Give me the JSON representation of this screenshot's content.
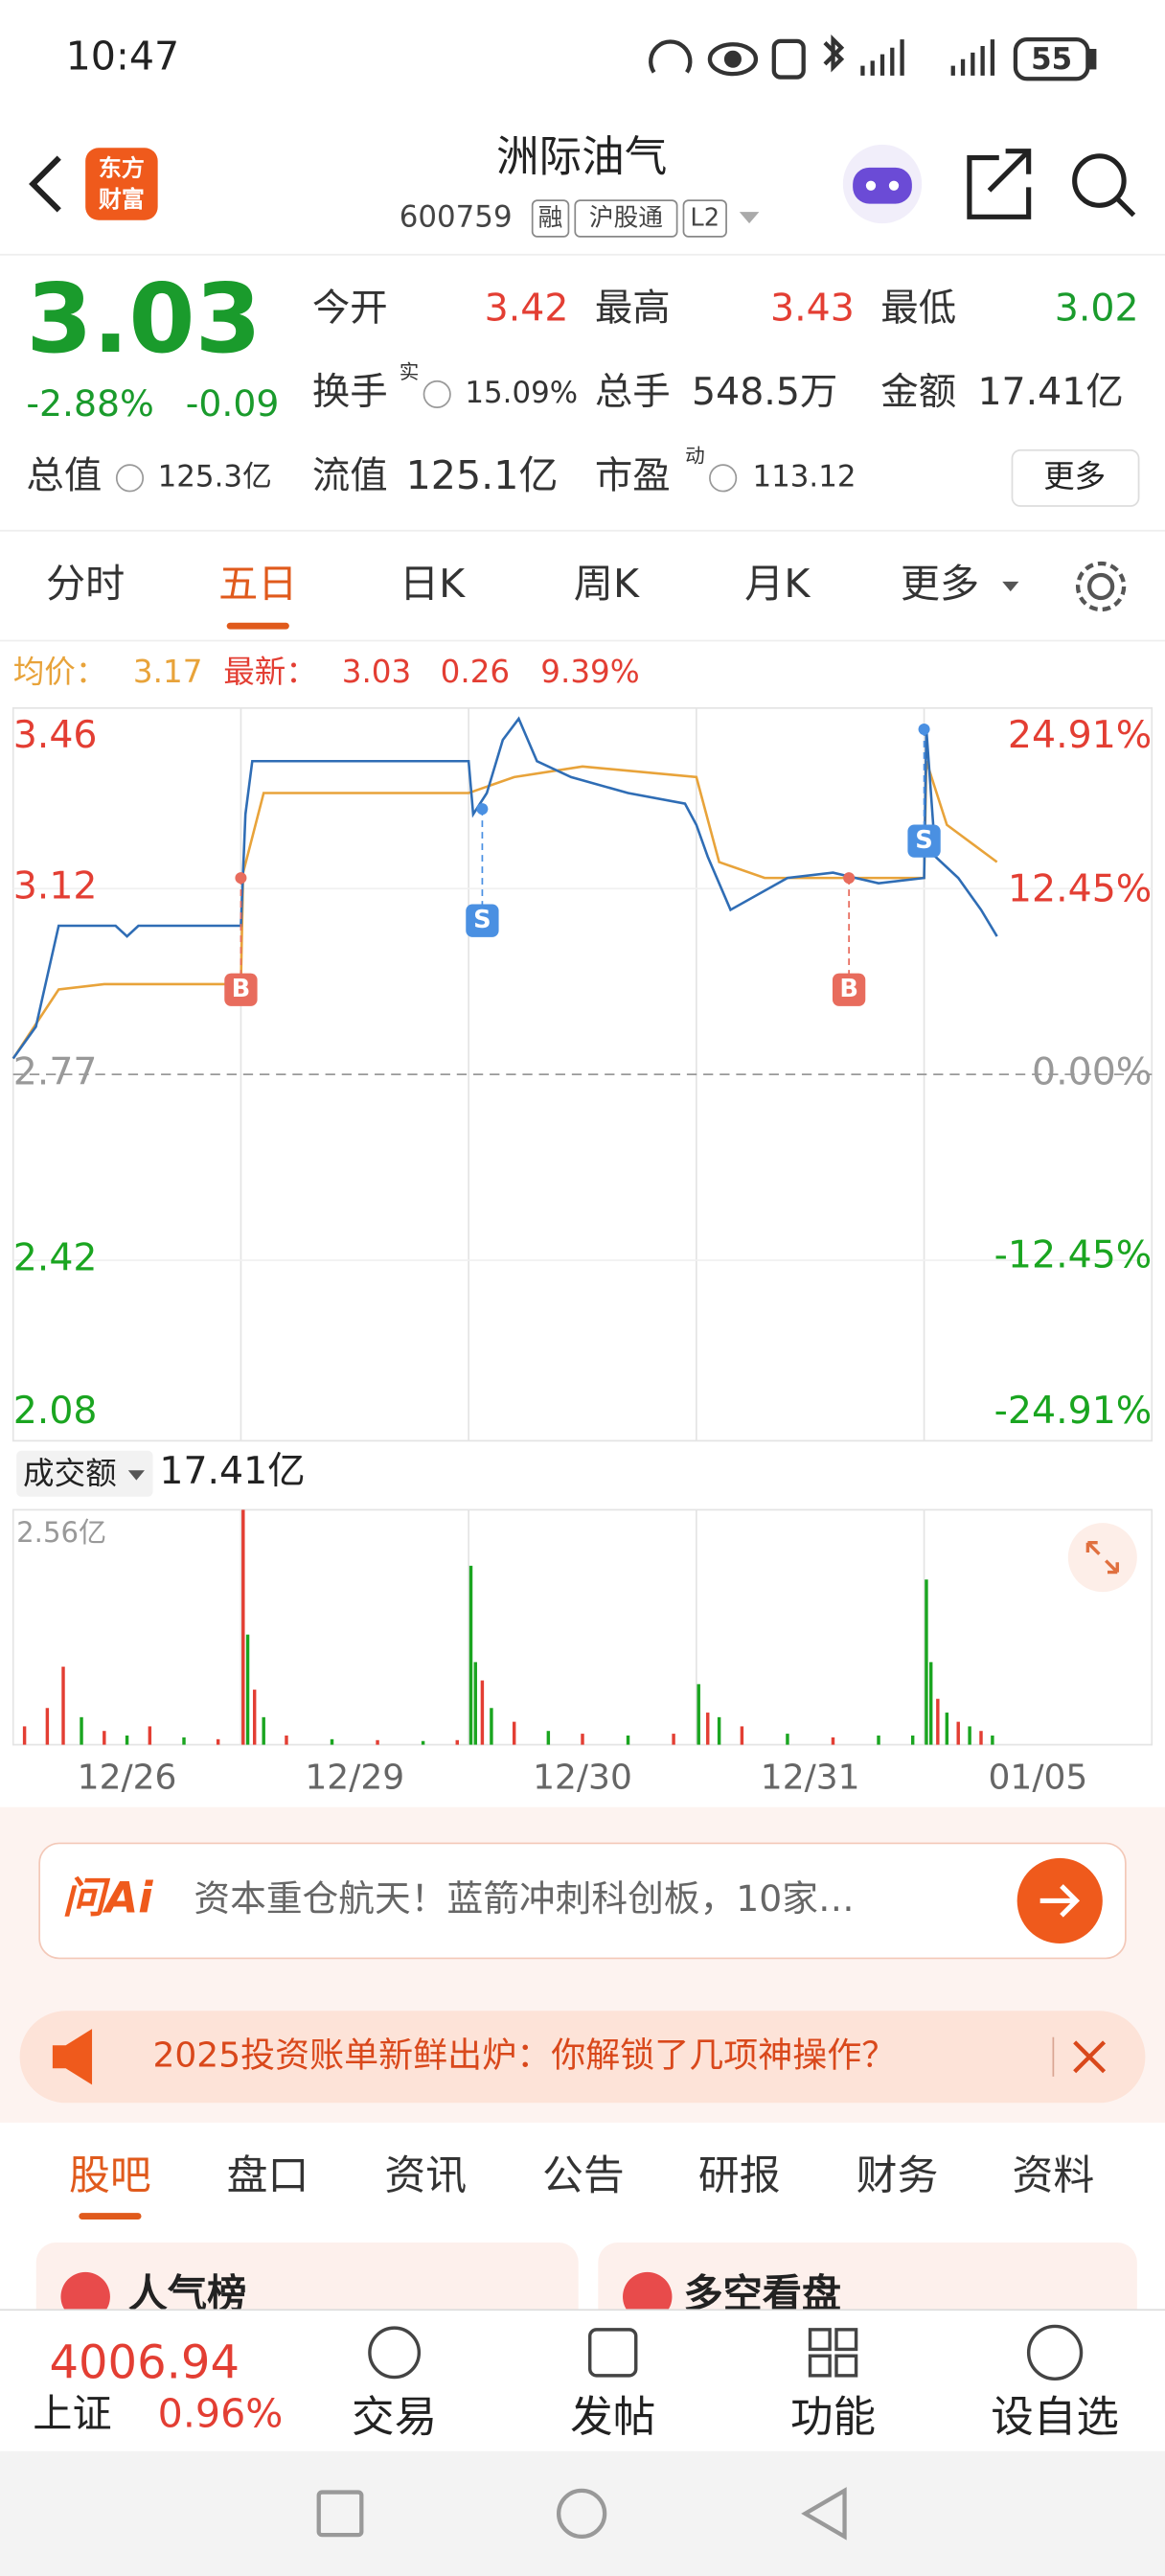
{
  "status_bar": {
    "time": "10:47",
    "battery": "55"
  },
  "header": {
    "logo": [
      "东方",
      "财富"
    ],
    "title": "洲际油气",
    "code": "600759",
    "tags": [
      "融",
      "沪股通",
      "L2"
    ]
  },
  "quote": {
    "price": "3.03",
    "change_pct": "-2.88%",
    "change": "-0.09",
    "fields": [
      {
        "label": "今开",
        "value": "3.42"
      },
      {
        "label": "最高",
        "value": "3.43"
      },
      {
        "label": "最低",
        "value": "3.02"
      },
      {
        "label": "换手",
        "note": "实",
        "value": "15.09%"
      },
      {
        "label": "总手",
        "value": "548.5万"
      },
      {
        "label": "金额",
        "value": "17.41亿"
      },
      {
        "label": "总值",
        "value": "125.3亿"
      },
      {
        "label": "流值",
        "value": "125.1亿"
      },
      {
        "label": "市盈",
        "note": "动",
        "value": "113.12"
      }
    ],
    "more": "更多"
  },
  "tabs": {
    "items": [
      "分时",
      "五日",
      "日K",
      "周K",
      "月K",
      "更多"
    ],
    "active": 1
  },
  "chart_data": [
    {
      "type": "line",
      "legend": {
        "avg_label": "均价：",
        "avg": "3.17",
        "last_label": "最新：",
        "last": "3.03",
        "change": "0.26",
        "amplitude": "9.39%"
      },
      "xlim": [
        0,
        5
      ],
      "xticks": [
        {
          "value": 0.5,
          "label": "12/26"
        },
        {
          "value": 1.5,
          "label": "12/29"
        },
        {
          "value": 2.5,
          "label": "12/30"
        },
        {
          "value": 3.5,
          "label": "12/31"
        },
        {
          "value": 4.5,
          "label": "01/05"
        }
      ],
      "ylim": [
        2.08,
        3.46
      ],
      "yticks": [
        3.46,
        3.12,
        2.77,
        2.42,
        2.08
      ],
      "y2lim": [
        -24.91,
        24.91
      ],
      "y2ticks": [
        {
          "value": 24.91,
          "label": "24.91%"
        },
        {
          "value": 12.45,
          "label": "12.45%"
        },
        {
          "value": 0,
          "label": "0.00%"
        },
        {
          "value": -12.45,
          "label": "-12.45%"
        },
        {
          "value": -24.91,
          "label": "-24.91%"
        }
      ],
      "series": [
        {
          "name": "最新",
          "color": "#2f6db5",
          "x": [
            0,
            0.1,
            0.2,
            0.45,
            0.5,
            0.55,
            1.0,
            1.02,
            1.05,
            2.0,
            2.02,
            2.08,
            2.15,
            2.22,
            2.3,
            2.45,
            2.7,
            2.95,
            3.0,
            3.05,
            3.15,
            3.4,
            3.6,
            3.8,
            4.0,
            4.01,
            4.05,
            4.15,
            4.25,
            4.32
          ],
          "values": [
            2.8,
            2.86,
            3.05,
            3.05,
            3.03,
            3.05,
            3.05,
            3.26,
            3.36,
            3.36,
            3.26,
            3.3,
            3.4,
            3.44,
            3.36,
            3.33,
            3.3,
            3.28,
            3.24,
            3.18,
            3.08,
            3.14,
            3.15,
            3.13,
            3.14,
            3.42,
            3.18,
            3.14,
            3.08,
            3.03
          ]
        },
        {
          "name": "均价",
          "color": "#e8a33a",
          "x": [
            0,
            0.2,
            0.4,
            1.0,
            1.01,
            1.1,
            2.0,
            2.2,
            2.5,
            3.0,
            3.1,
            3.3,
            4.0,
            4.01,
            4.1,
            4.32
          ],
          "values": [
            2.8,
            2.93,
            2.94,
            2.94,
            3.15,
            3.3,
            3.3,
            3.33,
            3.35,
            3.33,
            3.17,
            3.14,
            3.14,
            3.36,
            3.24,
            3.17
          ]
        }
      ],
      "annotations": [
        {
          "text": "B",
          "x": 1.0,
          "y": 3.14,
          "color": "#e86c5d"
        },
        {
          "text": "S",
          "x": 2.06,
          "y": 3.27,
          "color": "#4a90e2"
        },
        {
          "text": "B",
          "x": 3.67,
          "y": 3.14,
          "color": "#e86c5d"
        },
        {
          "text": "S",
          "x": 4.0,
          "y": 3.42,
          "color": "#4a90e2"
        }
      ]
    },
    {
      "type": "bar",
      "selector": "成交额",
      "total": "17.41亿",
      "xlim": [
        0,
        5
      ],
      "xticks": [
        {
          "value": 0.5,
          "label": "12/26"
        },
        {
          "value": 1.5,
          "label": "12/29"
        },
        {
          "value": 2.5,
          "label": "12/30"
        },
        {
          "value": 3.5,
          "label": "12/31"
        },
        {
          "value": 4.5,
          "label": "01/05"
        }
      ],
      "ylim": [
        0,
        2.56
      ],
      "yticks": [
        {
          "value": 2.56,
          "label": "2.56亿"
        }
      ],
      "x": [
        0.05,
        0.15,
        0.22,
        0.3,
        0.4,
        0.5,
        0.6,
        0.75,
        0.9,
        1.01,
        1.03,
        1.06,
        1.1,
        1.2,
        1.4,
        1.6,
        1.8,
        1.95,
        2.01,
        2.03,
        2.06,
        2.1,
        2.2,
        2.35,
        2.5,
        2.7,
        2.9,
        3.01,
        3.05,
        3.1,
        3.2,
        3.4,
        3.6,
        3.8,
        3.95,
        4.01,
        4.03,
        4.06,
        4.1,
        4.15,
        4.2,
        4.25,
        4.3
      ],
      "values": [
        0.2,
        0.4,
        0.85,
        0.3,
        0.15,
        0.1,
        0.2,
        0.08,
        0.06,
        2.56,
        1.2,
        0.6,
        0.3,
        0.1,
        0.06,
        0.05,
        0.04,
        0.05,
        1.95,
        0.9,
        0.7,
        0.4,
        0.25,
        0.15,
        0.12,
        0.1,
        0.12,
        0.66,
        0.35,
        0.3,
        0.2,
        0.12,
        0.08,
        0.1,
        0.1,
        1.8,
        0.9,
        0.5,
        0.35,
        0.25,
        0.2,
        0.15,
        0.1
      ],
      "colors": [
        "#e33e33",
        "#e33e33",
        "#e33e33",
        "#1aa520",
        "#e33e33",
        "#1aa520",
        "#e33e33",
        "#1aa520",
        "#e33e33",
        "#e33e33",
        "#1aa520",
        "#e33e33",
        "#1aa520",
        "#e33e33",
        "#1aa520",
        "#e33e33",
        "#1aa520",
        "#e33e33",
        "#1aa520",
        "#1aa520",
        "#e33e33",
        "#1aa520",
        "#e33e33",
        "#1aa520",
        "#e33e33",
        "#1aa520",
        "#e33e33",
        "#1aa520",
        "#e33e33",
        "#1aa520",
        "#e33e33",
        "#1aa520",
        "#e33e33",
        "#1aa520",
        "#1aa520",
        "#1aa520",
        "#1aa520",
        "#e33e33",
        "#1aa520",
        "#e33e33",
        "#1aa520",
        "#e33e33",
        "#1aa520"
      ]
    }
  ],
  "ai_banner": {
    "logo": "问Ai",
    "text": "资本重仓航天！蓝箭冲刺科创板，10家…"
  },
  "promo": {
    "text": "2025投资账单新鲜出炉：你解锁了几项神操作？"
  },
  "sub_tabs": {
    "items": [
      "股吧",
      "盘口",
      "资讯",
      "公告",
      "研报",
      "财务",
      "资料"
    ],
    "active": 0
  },
  "cards": [
    "人气榜",
    "多空看盘"
  ],
  "bottom_bar": {
    "index_value": "4006.94",
    "index_name": "上证",
    "index_pct": "0.96%",
    "nav": [
      "交易",
      "发帖",
      "功能",
      "设自选"
    ]
  }
}
